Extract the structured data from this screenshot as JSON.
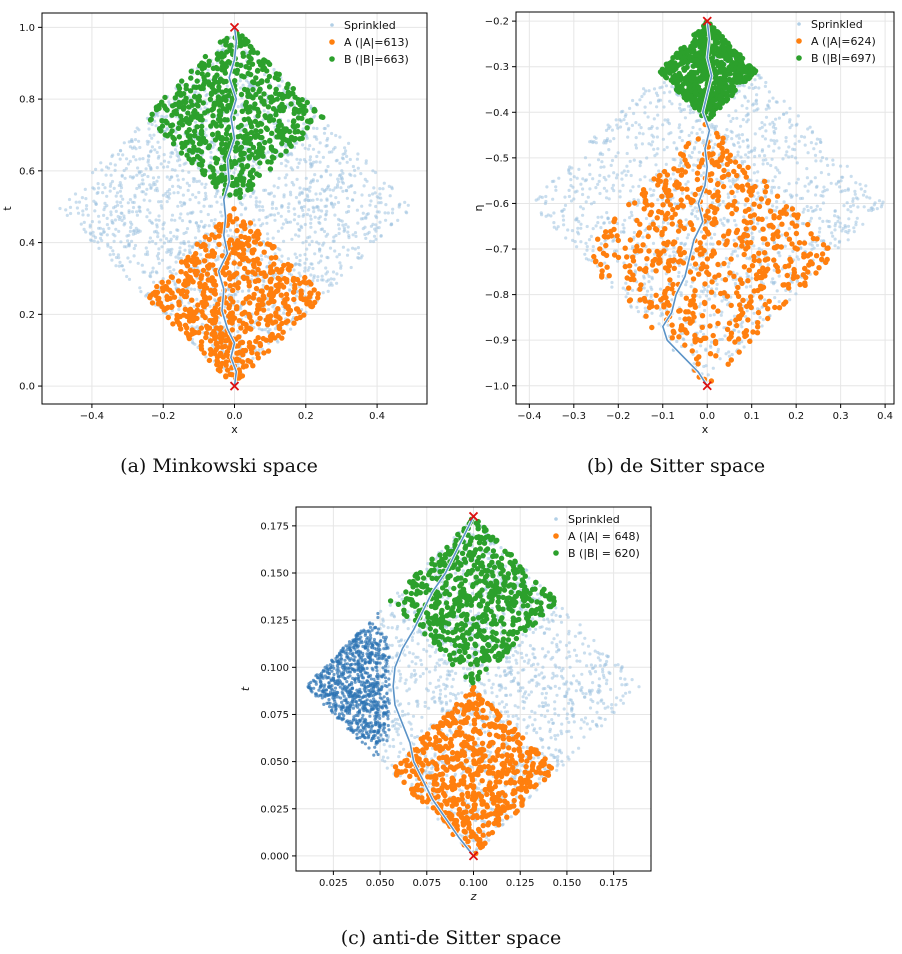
{
  "colors": {
    "sprinkled": "#9ec3e0",
    "sprinkled_dense": "#2c74b3",
    "A": "#ff7f0e",
    "B": "#2ca02c",
    "path": "#5b93c7",
    "endpoint": "#dd1111",
    "grid": "#e6e6e6"
  },
  "chart_data": [
    {
      "type": "scatter",
      "caption": "(a) Minkowski space",
      "xlabel": "x",
      "ylabel": "t",
      "xlim": [
        -0.54,
        0.54
      ],
      "ylim": [
        -0.05,
        1.04
      ],
      "xticks": [
        -0.4,
        -0.2,
        0.0,
        0.2,
        0.4
      ],
      "xtick_labels": [
        "−0.4",
        "−0.2",
        "0.0",
        "0.2",
        "0.4"
      ],
      "yticks": [
        0.0,
        0.2,
        0.4,
        0.6,
        0.8,
        1.0
      ],
      "ytick_labels": [
        "0.0",
        "0.2",
        "0.4",
        "0.6",
        "0.8",
        "1.0"
      ],
      "grid": true,
      "legend_position": "top-right",
      "region": {
        "bottom": [
          0,
          0
        ],
        "left": [
          -0.5,
          0.5
        ],
        "top": [
          0,
          1
        ],
        "right": [
          0.5,
          0.5
        ]
      },
      "split_t": 0.5,
      "endpoints": [
        [
          0,
          0
        ],
        [
          0,
          1
        ]
      ],
      "path": [
        [
          0,
          0
        ],
        [
          0.005,
          0.04
        ],
        [
          -0.01,
          0.08
        ],
        [
          0.0,
          0.12
        ],
        [
          -0.02,
          0.16
        ],
        [
          -0.035,
          0.21
        ],
        [
          -0.03,
          0.27
        ],
        [
          -0.045,
          0.32
        ],
        [
          -0.02,
          0.37
        ],
        [
          -0.03,
          0.42
        ],
        [
          -0.025,
          0.47
        ],
        [
          -0.03,
          0.52
        ],
        [
          -0.015,
          0.57
        ],
        [
          -0.02,
          0.63
        ],
        [
          0.0,
          0.69
        ],
        [
          -0.01,
          0.75
        ],
        [
          0.005,
          0.8
        ],
        [
          -0.015,
          0.86
        ],
        [
          0.0,
          0.91
        ],
        [
          0.005,
          0.96
        ],
        [
          0,
          1
        ]
      ],
      "series": [
        {
          "name": "Sprinkled",
          "count": 2000
        },
        {
          "name": "A (|A|=613)",
          "count": 613
        },
        {
          "name": "B (|B|=663)",
          "count": 663
        }
      ]
    },
    {
      "type": "scatter",
      "caption": "(b) de Sitter space",
      "xlabel": "x",
      "ylabel": "η",
      "xlim": [
        -0.43,
        0.42
      ],
      "ylim": [
        -1.04,
        -0.18
      ],
      "xticks": [
        -0.4,
        -0.3,
        -0.2,
        -0.1,
        0.0,
        0.1,
        0.2,
        0.3,
        0.4
      ],
      "xtick_labels": [
        "−0.4",
        "−0.3",
        "−0.2",
        "−0.1",
        "0.0",
        "0.1",
        "0.2",
        "0.3",
        "0.4"
      ],
      "yticks": [
        -1.0,
        -0.9,
        -0.8,
        -0.7,
        -0.6,
        -0.5,
        -0.4,
        -0.3,
        -0.2
      ],
      "ytick_labels": [
        "−1.0",
        "−0.9",
        "−0.8",
        "−0.7",
        "−0.6",
        "−0.5",
        "−0.4",
        "−0.3",
        "−0.2"
      ],
      "grid": true,
      "legend_position": "top-right",
      "region": {
        "bottom": [
          0,
          -1.0
        ],
        "left": [
          -0.4,
          -0.6
        ],
        "top": [
          0,
          -0.2
        ],
        "right": [
          0.4,
          -0.6
        ]
      },
      "split_t": -0.42,
      "endpoints": [
        [
          0,
          -1.0
        ],
        [
          0,
          -0.2
        ]
      ],
      "path": [
        [
          0,
          -1.0
        ],
        [
          -0.02,
          -0.97
        ],
        [
          -0.06,
          -0.93
        ],
        [
          -0.09,
          -0.9
        ],
        [
          -0.1,
          -0.87
        ],
        [
          -0.08,
          -0.84
        ],
        [
          -0.07,
          -0.8
        ],
        [
          -0.05,
          -0.76
        ],
        [
          -0.04,
          -0.72
        ],
        [
          -0.03,
          -0.68
        ],
        [
          -0.01,
          -0.64
        ],
        [
          -0.02,
          -0.6
        ],
        [
          -0.005,
          -0.56
        ],
        [
          0.0,
          -0.52
        ],
        [
          -0.005,
          -0.48
        ],
        [
          0.005,
          -0.44
        ],
        [
          -0.01,
          -0.4
        ],
        [
          0.0,
          -0.36
        ],
        [
          0.01,
          -0.32
        ],
        [
          0.0,
          -0.28
        ],
        [
          0.005,
          -0.24
        ],
        [
          0,
          -0.2
        ]
      ],
      "series": [
        {
          "name": "Sprinkled",
          "count": 1500
        },
        {
          "name": "A (|A|=624)",
          "count": 624
        },
        {
          "name": "B (|B|=697)",
          "count": 697
        }
      ]
    },
    {
      "type": "scatter",
      "caption": "(c) anti-de Sitter space",
      "xlabel": "z",
      "ylabel": "t",
      "xlim": [
        0.005,
        0.195
      ],
      "ylim": [
        -0.008,
        0.185
      ],
      "xticks": [
        0.025,
        0.05,
        0.075,
        0.1,
        0.125,
        0.15,
        0.175
      ],
      "xtick_labels": [
        "0.025",
        "0.050",
        "0.075",
        "0.100",
        "0.125",
        "0.150",
        "0.175"
      ],
      "yticks": [
        0.0,
        0.025,
        0.05,
        0.075,
        0.1,
        0.125,
        0.15,
        0.175
      ],
      "ytick_labels": [
        "0.000",
        "0.025",
        "0.050",
        "0.075",
        "0.100",
        "0.125",
        "0.150",
        "0.175"
      ],
      "grid": true,
      "legend_position": "top-right",
      "region": {
        "bottom": [
          0.1,
          0.0
        ],
        "left": [
          0.01,
          0.09
        ],
        "top": [
          0.1,
          0.18
        ],
        "right": [
          0.19,
          0.09
        ]
      },
      "split_t": 0.09,
      "endpoints": [
        [
          0.1,
          0.0
        ],
        [
          0.1,
          0.18
        ]
      ],
      "path": [
        [
          0.1,
          0.0
        ],
        [
          0.092,
          0.01
        ],
        [
          0.085,
          0.02
        ],
        [
          0.078,
          0.03
        ],
        [
          0.073,
          0.04
        ],
        [
          0.068,
          0.05
        ],
        [
          0.066,
          0.06
        ],
        [
          0.062,
          0.07
        ],
        [
          0.058,
          0.08
        ],
        [
          0.057,
          0.09
        ],
        [
          0.058,
          0.1
        ],
        [
          0.062,
          0.11
        ],
        [
          0.068,
          0.12
        ],
        [
          0.073,
          0.13
        ],
        [
          0.078,
          0.14
        ],
        [
          0.085,
          0.15
        ],
        [
          0.09,
          0.16
        ],
        [
          0.095,
          0.17
        ],
        [
          0.1,
          0.18
        ]
      ],
      "series": [
        {
          "name": "Sprinkled",
          "count": 1800
        },
        {
          "name": "A (|A| = 648)",
          "count": 648
        },
        {
          "name": "B (|B| = 620)",
          "count": 620
        }
      ]
    }
  ]
}
